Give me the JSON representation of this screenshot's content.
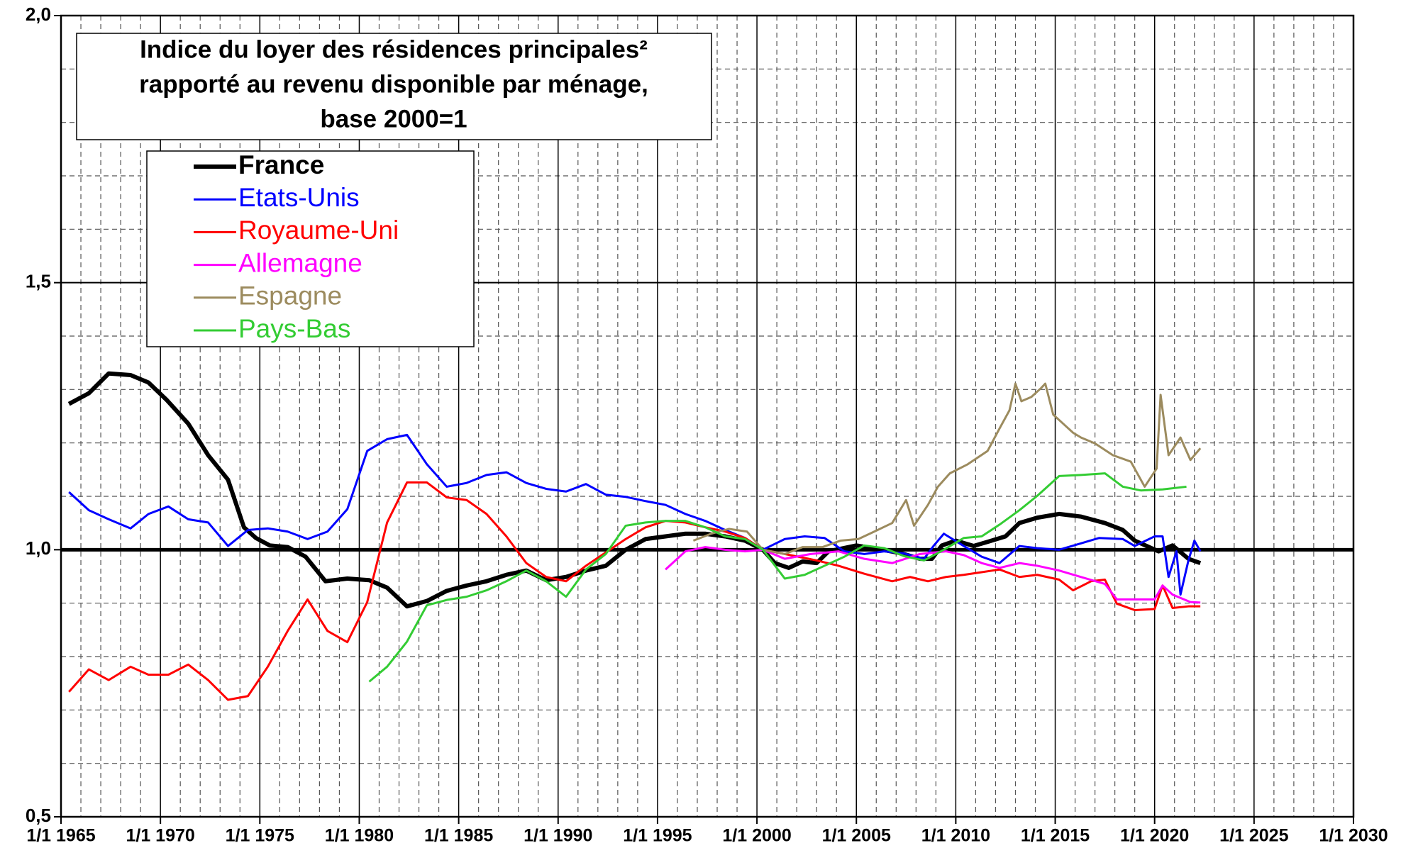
{
  "chart_data": {
    "type": "line",
    "title": [
      "Indice du loyer des résidences principales²",
      "rapporté au revenu disponible par ménage,",
      "base 2000=1"
    ],
    "xlim": [
      1965,
      2030
    ],
    "xticks": [
      {
        "value": 1965,
        "label": "1/1 1965"
      },
      {
        "value": 1970,
        "label": "1/1 1970"
      },
      {
        "value": 1975,
        "label": "1/1 1975"
      },
      {
        "value": 1980,
        "label": "1/1 1980"
      },
      {
        "value": 1985,
        "label": "1/1 1985"
      },
      {
        "value": 1990,
        "label": "1/1 1990"
      },
      {
        "value": 1995,
        "label": "1/1 1995"
      },
      {
        "value": 2000,
        "label": "1/1 2000"
      },
      {
        "value": 2005,
        "label": "1/1 2005"
      },
      {
        "value": 2010,
        "label": "1/1 2010"
      },
      {
        "value": 2015,
        "label": "1/1 2015"
      },
      {
        "value": 2020,
        "label": "1/1 2020"
      },
      {
        "value": 2025,
        "label": "1/1 2025"
      },
      {
        "value": 2030,
        "label": "1/1 2030"
      }
    ],
    "x_minor_ticks": [
      1966,
      1967,
      1968,
      1969,
      1971,
      1972,
      1973,
      1974,
      1976,
      1977,
      1978,
      1979,
      1981,
      1982,
      1983,
      1984,
      1986,
      1987,
      1988,
      1989,
      1991,
      1992,
      1993,
      1994,
      1996,
      1997,
      1998,
      1999,
      2001,
      2002,
      2003,
      2004,
      2006,
      2007,
      2008,
      2009,
      2011,
      2012,
      2013,
      2014,
      2016,
      2017,
      2018,
      2019,
      2021,
      2022,
      2023,
      2024,
      2026,
      2027,
      2028,
      2029
    ],
    "ylim": [
      0.5,
      2.0
    ],
    "yticks": [
      {
        "value": 0.5,
        "label": "0,5"
      },
      {
        "value": 1.0,
        "label": "1,0"
      },
      {
        "value": 1.5,
        "label": "1,5"
      },
      {
        "value": 2.0,
        "label": "2,0"
      }
    ],
    "y_minor_ticks": [
      0.6,
      0.7,
      0.8,
      0.9,
      1.1,
      1.2,
      1.3,
      1.4,
      1.6,
      1.7,
      1.8,
      1.9
    ],
    "highlight_ytick": 1.0,
    "grid": true,
    "legend": "upper left",
    "series": [
      {
        "name": "France",
        "color": "#000000",
        "width": 6,
        "x": [
          1965.4,
          1966.4,
          1967.4,
          1968.5,
          1969.4,
          1970.3,
          1971.4,
          1972.4,
          1973.4,
          1974.2,
          1974.8,
          1975.5,
          1976.4,
          1977.3,
          1978.3,
          1979.4,
          1980.5,
          1981.4,
          1982.4,
          1983.4,
          1984.4,
          1985.4,
          1986.4,
          1987.4,
          1988.4,
          1989.4,
          1990.4,
          1991.4,
          1992.4,
          1993.4,
          1994.4,
          1995.4,
          1996.4,
          1997.4,
          1998.4,
          1999.4,
          2000.3,
          2000.9,
          2001.6,
          2002.3,
          2003.0,
          2003.6,
          2005.0,
          2006.3,
          2007.3,
          2008.2,
          2008.8,
          2009.3,
          2010.0,
          2010.9,
          2011.8,
          2012.5,
          2013.2,
          2014.1,
          2015.2,
          2016.3,
          2017.5,
          2018.4,
          2019.0,
          2020.2,
          2020.9,
          2021.7,
          2022.3
        ],
        "values": [
          1.273,
          1.293,
          1.33,
          1.327,
          1.313,
          1.281,
          1.236,
          1.177,
          1.131,
          1.042,
          1.022,
          1.008,
          1.005,
          0.987,
          0.941,
          0.946,
          0.943,
          0.929,
          0.894,
          0.904,
          0.923,
          0.933,
          0.941,
          0.953,
          0.961,
          0.943,
          0.949,
          0.961,
          0.97,
          1.0,
          1.02,
          1.025,
          1.03,
          1.03,
          1.025,
          1.017,
          1.0,
          0.975,
          0.966,
          0.978,
          0.975,
          0.997,
          1.008,
          1.0,
          0.993,
          0.983,
          0.983,
          1.008,
          1.017,
          1.007,
          1.017,
          1.025,
          1.05,
          1.06,
          1.067,
          1.062,
          1.05,
          1.037,
          1.017,
          0.997,
          1.008,
          0.983,
          0.975
        ]
      },
      {
        "name": "Etats-Unis",
        "color": "#0000ff",
        "width": 3,
        "x": [
          1965.4,
          1966.4,
          1967.4,
          1968.5,
          1969.4,
          1970.4,
          1971.4,
          1972.4,
          1973.4,
          1974.4,
          1975.4,
          1976.4,
          1977.4,
          1978.4,
          1979.4,
          1980.4,
          1981.4,
          1982.4,
          1983.4,
          1984.4,
          1985.4,
          1986.4,
          1987.4,
          1988.4,
          1989.4,
          1990.4,
          1991.4,
          1992.4,
          1993.4,
          1994.4,
          1995.4,
          1996.4,
          1997.4,
          1998.4,
          1999.4,
          2000.3,
          2001.4,
          2002.4,
          2003.4,
          2004.4,
          2005.4,
          2006.4,
          2007.4,
          2008.4,
          2008.9,
          2009.4,
          2010.4,
          2011.3,
          2012.2,
          2013.2,
          2014.1,
          2015.2,
          2016.3,
          2017.2,
          2018.4,
          2019.0,
          2020.0,
          2020.4,
          2020.7,
          2021.1,
          2021.3,
          2021.7,
          2022.0,
          2022.3
        ],
        "values": [
          1.108,
          1.074,
          1.057,
          1.04,
          1.067,
          1.081,
          1.057,
          1.051,
          1.007,
          1.037,
          1.04,
          1.034,
          1.02,
          1.034,
          1.076,
          1.185,
          1.207,
          1.215,
          1.16,
          1.118,
          1.125,
          1.14,
          1.145,
          1.125,
          1.114,
          1.109,
          1.123,
          1.103,
          1.099,
          1.091,
          1.084,
          1.067,
          1.054,
          1.037,
          1.022,
          1.0,
          1.02,
          1.025,
          1.022,
          0.997,
          0.992,
          0.997,
          0.993,
          0.983,
          1.008,
          1.03,
          1.007,
          0.987,
          0.975,
          1.007,
          1.003,
          1.0,
          1.012,
          1.022,
          1.02,
          1.007,
          1.025,
          1.025,
          0.949,
          0.997,
          0.916,
          0.98,
          1.017,
          0.997
        ]
      },
      {
        "name": "Royaume-Uni",
        "color": "#ff0000",
        "width": 3,
        "x": [
          1965.4,
          1966.4,
          1967.4,
          1968.5,
          1969.4,
          1970.4,
          1971.4,
          1972.4,
          1973.4,
          1974.4,
          1975.4,
          1976.4,
          1977.4,
          1978.4,
          1979.4,
          1980.4,
          1981.4,
          1982.4,
          1983.4,
          1984.4,
          1985.4,
          1986.4,
          1987.4,
          1988.4,
          1989.4,
          1990.4,
          1991.4,
          1992.4,
          1993.4,
          1994.4,
          1995.4,
          1996.4,
          1997.4,
          1998.4,
          1999.4,
          2000.3,
          2001.4,
          2003.0,
          2004.1,
          2005.4,
          2006.8,
          2007.7,
          2008.6,
          2009.5,
          2010.4,
          2011.3,
          2012.2,
          2013.2,
          2014.1,
          2015.2,
          2015.9,
          2016.8,
          2017.5,
          2018.1,
          2019.0,
          2020.0,
          2020.4,
          2020.9,
          2021.7,
          2022.3
        ],
        "values": [
          0.734,
          0.776,
          0.756,
          0.781,
          0.766,
          0.766,
          0.785,
          0.756,
          0.719,
          0.726,
          0.781,
          0.848,
          0.907,
          0.848,
          0.827,
          0.902,
          1.051,
          1.126,
          1.126,
          1.098,
          1.093,
          1.067,
          1.025,
          0.975,
          0.949,
          0.941,
          0.97,
          0.995,
          1.02,
          1.042,
          1.054,
          1.051,
          1.042,
          1.034,
          1.022,
          1.0,
          0.992,
          0.98,
          0.97,
          0.955,
          0.941,
          0.949,
          0.941,
          0.949,
          0.953,
          0.958,
          0.963,
          0.949,
          0.953,
          0.944,
          0.924,
          0.941,
          0.944,
          0.899,
          0.887,
          0.889,
          0.933,
          0.891,
          0.894,
          0.894
        ]
      },
      {
        "name": "Allemagne",
        "color": "#ff00ff",
        "width": 3,
        "x": [
          1995.4,
          1996.4,
          1997.4,
          1998.4,
          1999.4,
          2000.3,
          2001.4,
          2002.7,
          2004.1,
          2005.4,
          2006.8,
          2008.2,
          2009.5,
          2010.4,
          2011.3,
          2012.2,
          2013.2,
          2014.1,
          2015.2,
          2016.3,
          2017.5,
          2018.1,
          2019.0,
          2020.0,
          2020.4,
          2020.9,
          2021.8,
          2022.3
        ],
        "values": [
          0.963,
          0.997,
          1.005,
          1.0,
          0.997,
          1.0,
          0.983,
          0.992,
          0.997,
          0.983,
          0.975,
          0.992,
          0.997,
          0.99,
          0.975,
          0.966,
          0.975,
          0.97,
          0.961,
          0.949,
          0.936,
          0.907,
          0.907,
          0.907,
          0.933,
          0.916,
          0.902,
          0.901
        ]
      },
      {
        "name": "Espagne",
        "color": "#9c8b5e",
        "width": 3,
        "x": [
          1996.8,
          1997.7,
          1998.6,
          1999.5,
          2000.3,
          2001.4,
          2002.3,
          2003.3,
          2004.2,
          2005.1,
          2005.9,
          2006.8,
          2007.5,
          2007.9,
          2008.6,
          2009.1,
          2009.7,
          2010.6,
          2011.6,
          2012.2,
          2012.7,
          2013.0,
          2013.3,
          2013.8,
          2014.3,
          2014.5,
          2014.9,
          2015.4,
          2015.9,
          2016.3,
          2017.0,
          2017.9,
          2018.8,
          2019.5,
          2020.1,
          2020.3,
          2020.7,
          2021.3,
          2021.8,
          2022.3
        ],
        "values": [
          1.017,
          1.03,
          1.039,
          1.034,
          1.0,
          0.992,
          1.005,
          1.005,
          1.017,
          1.02,
          1.034,
          1.05,
          1.093,
          1.045,
          1.084,
          1.118,
          1.143,
          1.16,
          1.185,
          1.227,
          1.261,
          1.311,
          1.278,
          1.286,
          1.303,
          1.311,
          1.253,
          1.236,
          1.219,
          1.21,
          1.199,
          1.177,
          1.165,
          1.118,
          1.152,
          1.29,
          1.177,
          1.21,
          1.168,
          1.19
        ]
      },
      {
        "name": "Pays-Bas",
        "color": "#33cc33",
        "width": 3,
        "x": [
          1980.5,
          1981.4,
          1982.4,
          1983.4,
          1984.4,
          1985.4,
          1986.4,
          1987.4,
          1988.4,
          1989.4,
          1990.4,
          1991.4,
          1992.4,
          1993.4,
          1994.4,
          1995.4,
          1996.4,
          1997.4,
          1998.4,
          1999.4,
          2000.3,
          2001.4,
          2002.4,
          2003.4,
          2004.4,
          2005.4,
          2006.4,
          2007.4,
          2008.4,
          2009.4,
          2010.4,
          2011.3,
          2012.2,
          2013.2,
          2014.1,
          2015.2,
          2016.3,
          2017.5,
          2018.4,
          2019.3,
          2020.4,
          2021.6
        ],
        "values": [
          0.753,
          0.781,
          0.828,
          0.896,
          0.906,
          0.912,
          0.924,
          0.941,
          0.961,
          0.941,
          0.912,
          0.963,
          0.992,
          1.045,
          1.051,
          1.054,
          1.054,
          1.042,
          1.025,
          1.02,
          1.0,
          0.946,
          0.953,
          0.97,
          0.987,
          1.008,
          1.003,
          0.988,
          0.98,
          1.0,
          1.022,
          1.025,
          1.047,
          1.074,
          1.101,
          1.138,
          1.14,
          1.143,
          1.118,
          1.111,
          1.113,
          1.118
        ]
      }
    ]
  }
}
